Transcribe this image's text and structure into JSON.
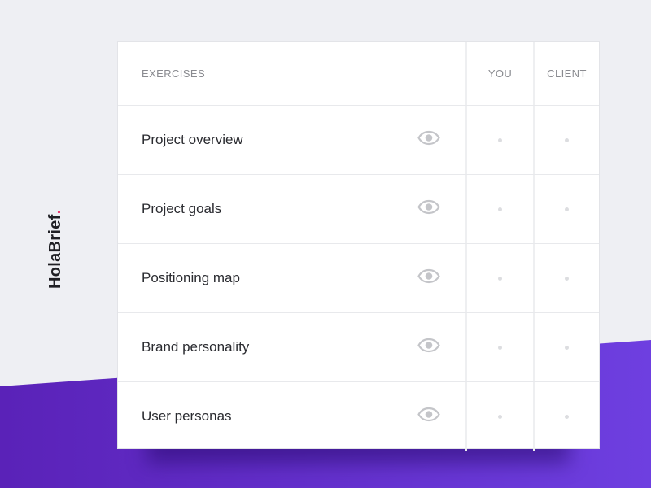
{
  "brand": {
    "name": "HolaBrief",
    "accent": "#ec3d74"
  },
  "table": {
    "headers": {
      "exercises": "EXERCISES",
      "you": "YOU",
      "client": "CLIENT"
    },
    "rows": [
      {
        "name": "Project overview"
      },
      {
        "name": "Project goals"
      },
      {
        "name": "Positioning map"
      },
      {
        "name": "Brand personality"
      },
      {
        "name": "User personas"
      }
    ]
  },
  "icons": {
    "view": "eye-icon",
    "status": "dot-icon"
  }
}
